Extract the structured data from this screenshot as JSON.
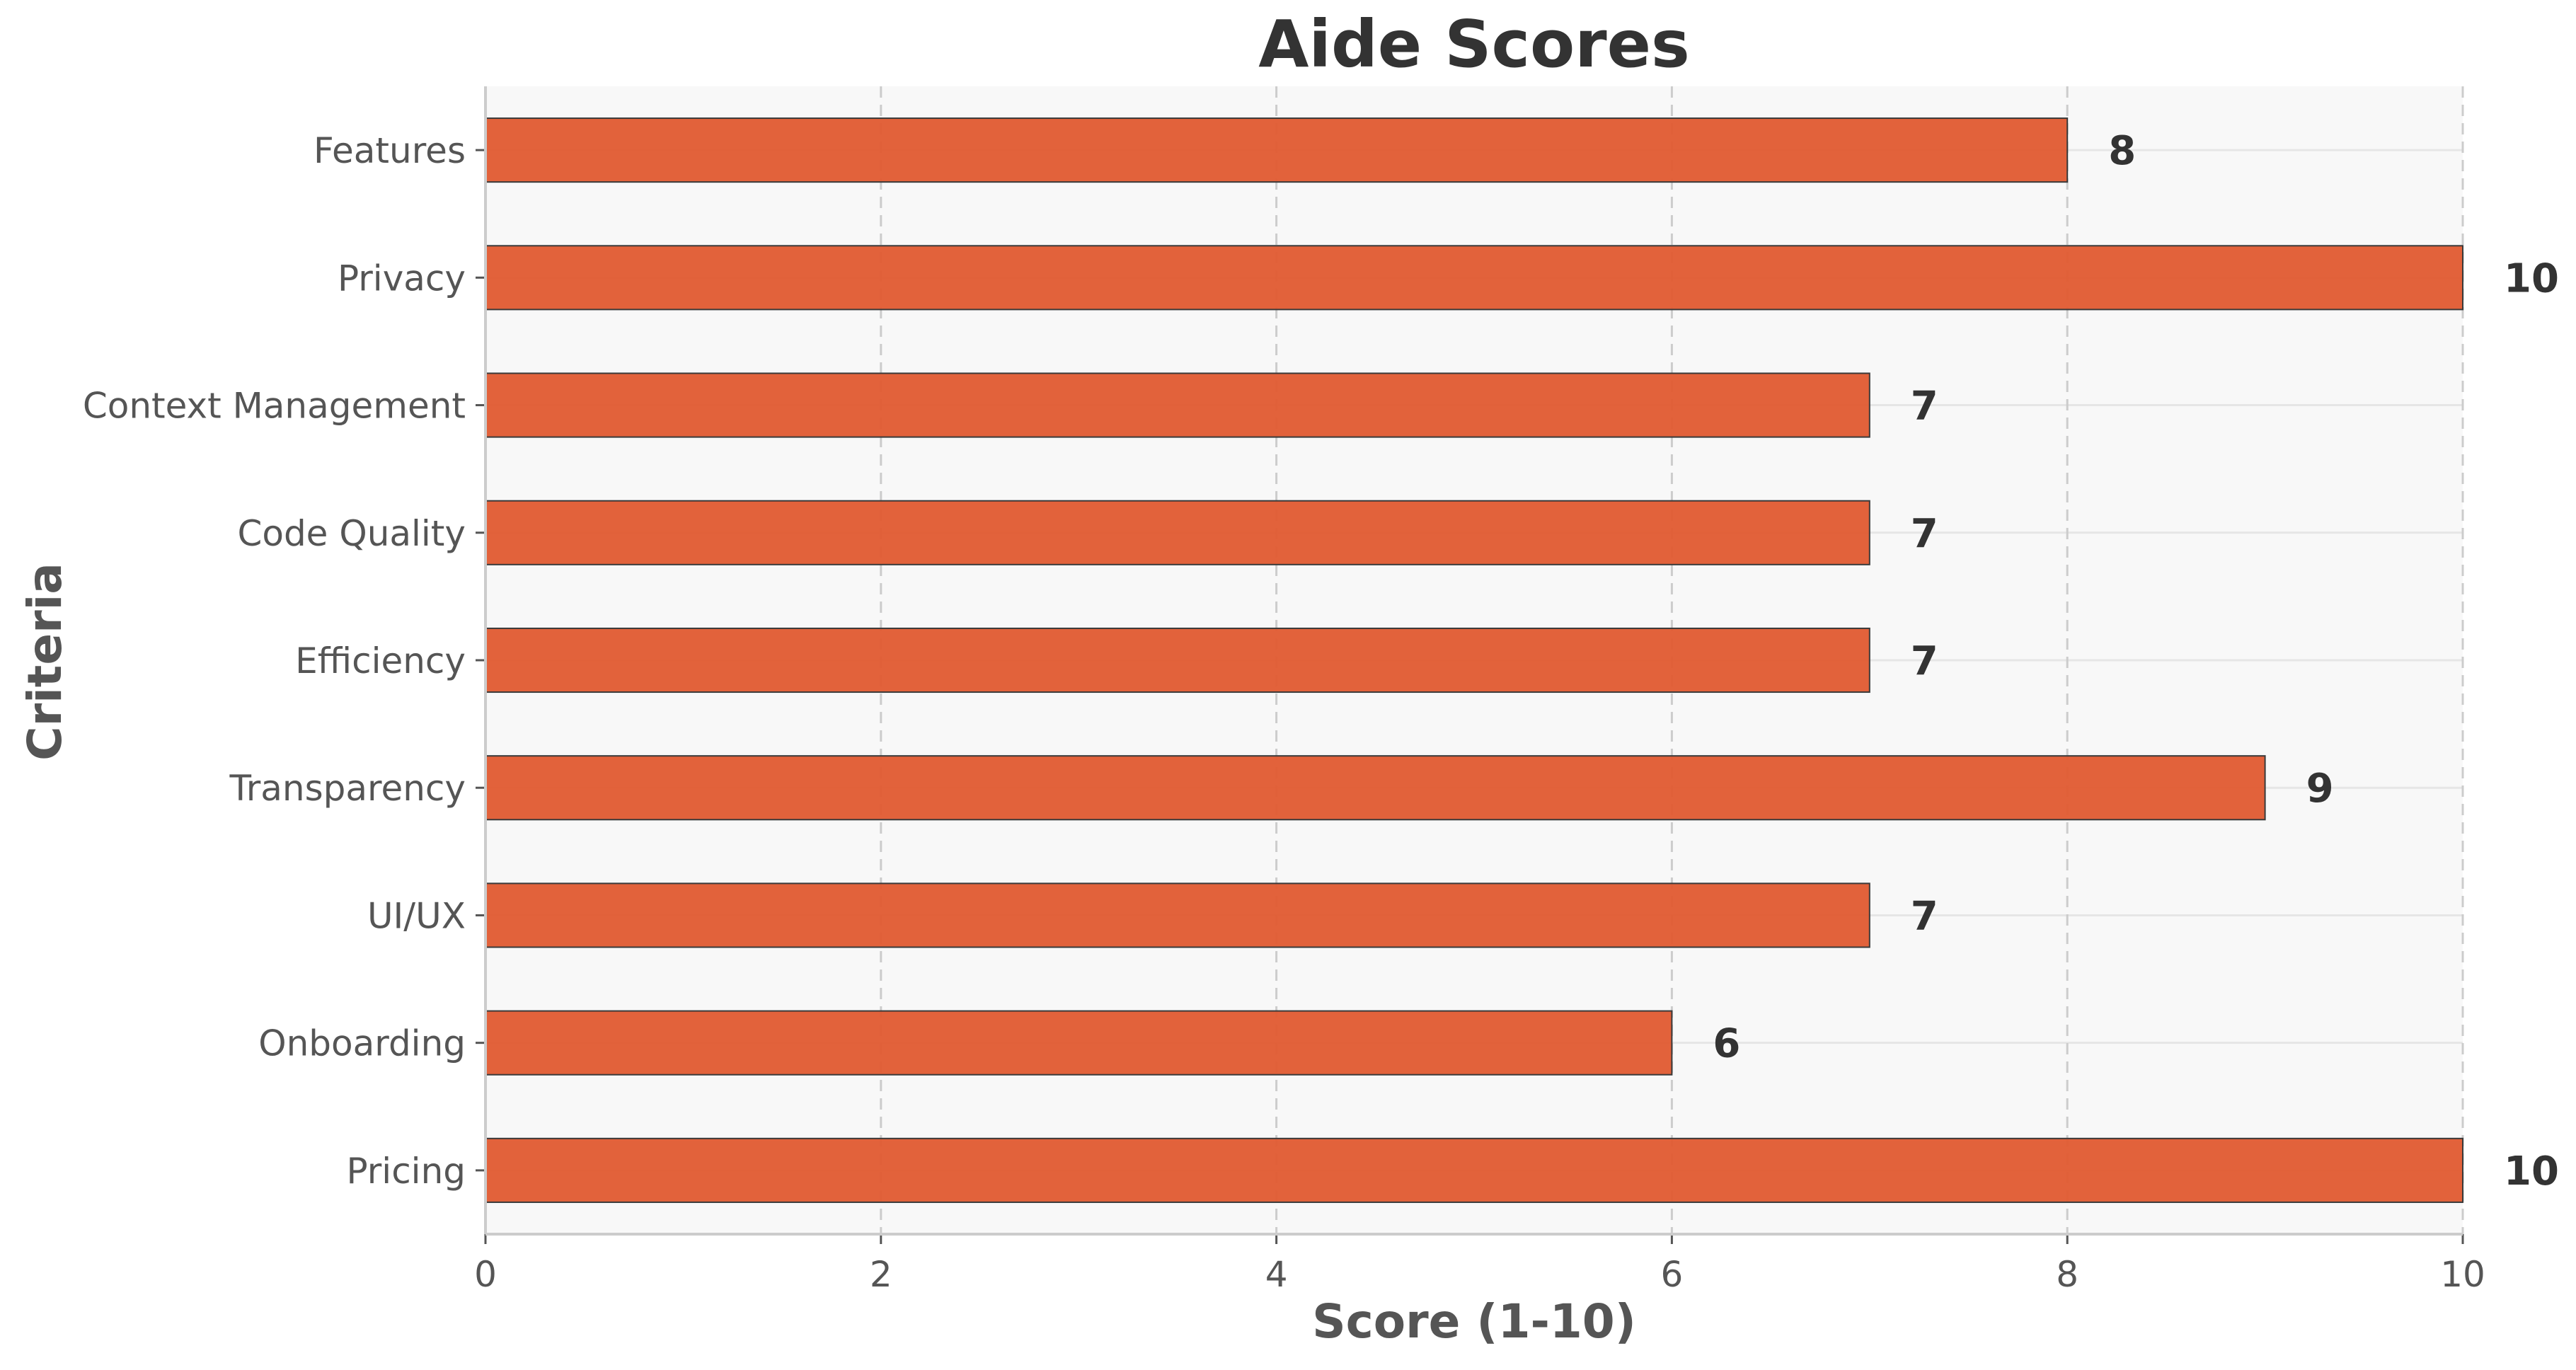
{
  "chart_data": {
    "type": "bar",
    "orientation": "horizontal",
    "title": "Aide Scores",
    "xlabel": "Score (1-10)",
    "ylabel": "Criteria",
    "categories": [
      "Features",
      "Privacy",
      "Context Management",
      "Code Quality",
      "Efficiency",
      "Transparency",
      "UI/UX",
      "Onboarding",
      "Pricing"
    ],
    "values": [
      8,
      10,
      7,
      7,
      7,
      9,
      7,
      6,
      10
    ],
    "xlim": [
      0,
      10
    ],
    "xticks": [
      0,
      2,
      4,
      6,
      8,
      10
    ],
    "grid": true,
    "legend": false,
    "bar_color": "#e05a30",
    "bar_edge_color": "#3a3a3a",
    "plot_background": "#f8f8f8"
  }
}
